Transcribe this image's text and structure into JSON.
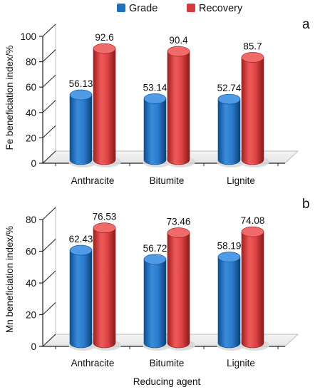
{
  "legend": {
    "items": [
      {
        "name": "Grade",
        "color": "#1f6fbf"
      },
      {
        "name": "Recovery",
        "color": "#d63a3a"
      }
    ],
    "position": "top"
  },
  "chart_data": [
    {
      "type": "bar",
      "panel_label": "a",
      "categories": [
        "Anthracite",
        "Bitumite",
        "Lignite"
      ],
      "series": [
        {
          "name": "Grade",
          "values": [
            56.13,
            53.14,
            52.74
          ],
          "labels": [
            "56.13",
            "53.14",
            "52.74"
          ],
          "color": "#1f6fbf"
        },
        {
          "name": "Recovery",
          "values": [
            92.6,
            90.4,
            85.7
          ],
          "labels": [
            "92.6",
            "90.4",
            "85.7"
          ],
          "color": "#d63a3a"
        }
      ],
      "ylabel": "Fe beneficiation index/%",
      "xlabel": "",
      "ylim": [
        0,
        100
      ],
      "yticks": [
        0,
        20,
        40,
        60,
        80,
        100
      ],
      "grid": false
    },
    {
      "type": "bar",
      "panel_label": "b",
      "categories": [
        "Anthracite",
        "Bitumite",
        "Lignite"
      ],
      "series": [
        {
          "name": "Grade",
          "values": [
            62.43,
            56.72,
            58.19
          ],
          "labels": [
            "62.43",
            "56.72",
            "58.19"
          ],
          "color": "#1f6fbf"
        },
        {
          "name": "Recovery",
          "values": [
            76.53,
            73.46,
            74.08
          ],
          "labels": [
            "76.53",
            "73.46",
            "74.08"
          ],
          "color": "#d63a3a"
        }
      ],
      "ylabel": "Mn beneficiation index/%",
      "xlabel": "Reducing agent",
      "ylim": [
        0,
        80
      ],
      "yticks": [
        0,
        20,
        40,
        60,
        80
      ],
      "grid": false
    }
  ]
}
